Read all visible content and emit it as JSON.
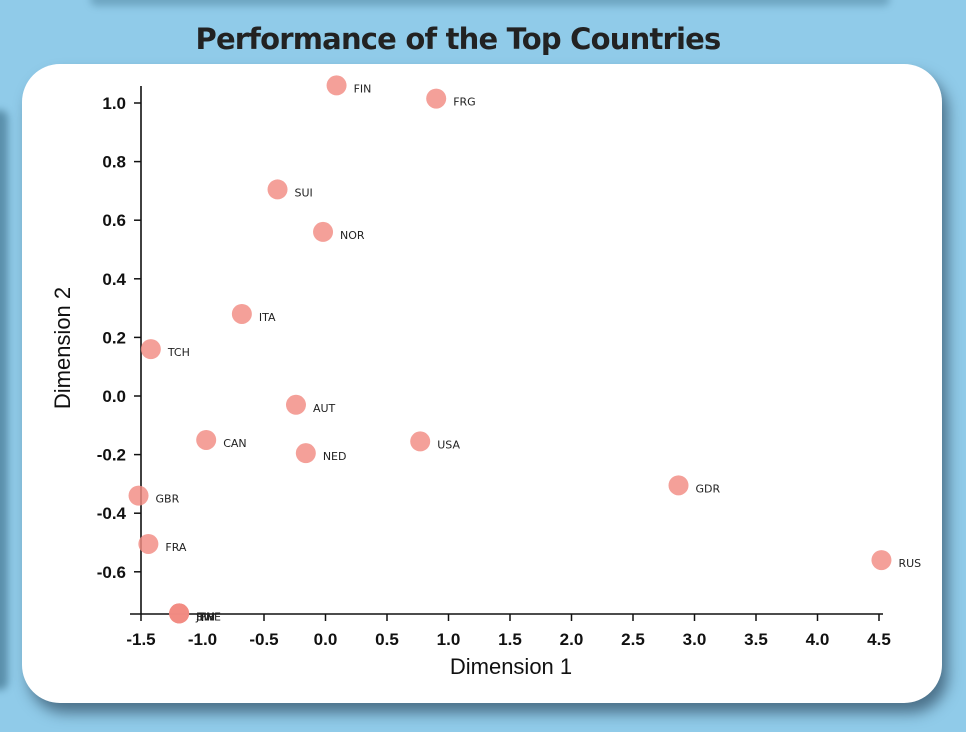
{
  "chart_data": {
    "type": "scatter",
    "title": "Performance of the Top Countries",
    "xlabel": "Dimension 1",
    "ylabel": "Dimension 2",
    "xlim": [
      -1.55,
      4.55
    ],
    "ylim": [
      -0.75,
      1.07
    ],
    "xticks": [
      -1.5,
      -1.0,
      -0.5,
      0.0,
      0.5,
      1.0,
      1.5,
      2.0,
      2.5,
      3.0,
      3.5,
      4.0,
      4.5
    ],
    "xtick_labels": [
      "-1.5",
      "-1.0",
      "-0.5",
      "0.0",
      "0.5",
      "1.0",
      "1.5",
      "2.0",
      "2.5",
      "3.0",
      "3.5",
      "4.0",
      "4.5"
    ],
    "yticks": [
      -0.6,
      -0.4,
      -0.2,
      0.0,
      0.2,
      0.4,
      0.6,
      0.8,
      1.0
    ],
    "ytick_labels": [
      "-0.6",
      "-0.4",
      "-0.2",
      "0.0",
      "0.2",
      "0.4",
      "0.6",
      "0.8",
      "1.0"
    ],
    "grid": false,
    "marker_color": "#f28b82",
    "marker_color_overlap": "#e8554a",
    "points": [
      {
        "label": "FIN",
        "x": 0.09,
        "y": 1.06
      },
      {
        "label": "FRG",
        "x": 0.9,
        "y": 1.015
      },
      {
        "label": "SUI",
        "x": -0.39,
        "y": 0.705
      },
      {
        "label": "NOR",
        "x": -0.02,
        "y": 0.56
      },
      {
        "label": "ITA",
        "x": -0.68,
        "y": 0.28
      },
      {
        "label": "TCH",
        "x": -1.42,
        "y": 0.16
      },
      {
        "label": "AUT",
        "x": -0.24,
        "y": -0.03
      },
      {
        "label": "CAN",
        "x": -0.97,
        "y": -0.15
      },
      {
        "label": "NED",
        "x": -0.16,
        "y": -0.195
      },
      {
        "label": "USA",
        "x": 0.77,
        "y": -0.155
      },
      {
        "label": "GDR",
        "x": 2.87,
        "y": -0.305
      },
      {
        "label": "GBR",
        "x": -1.52,
        "y": -0.34
      },
      {
        "label": "FRA",
        "x": -1.44,
        "y": -0.505
      },
      {
        "label": "RUS",
        "x": 4.52,
        "y": -0.56
      },
      {
        "label": "BIH",
        "x": -1.19,
        "y": -0.742
      },
      {
        "label": "JPN",
        "x": -1.19,
        "y": -0.742
      },
      {
        "label": "SWE",
        "x": -1.19,
        "y": -0.742
      }
    ]
  }
}
